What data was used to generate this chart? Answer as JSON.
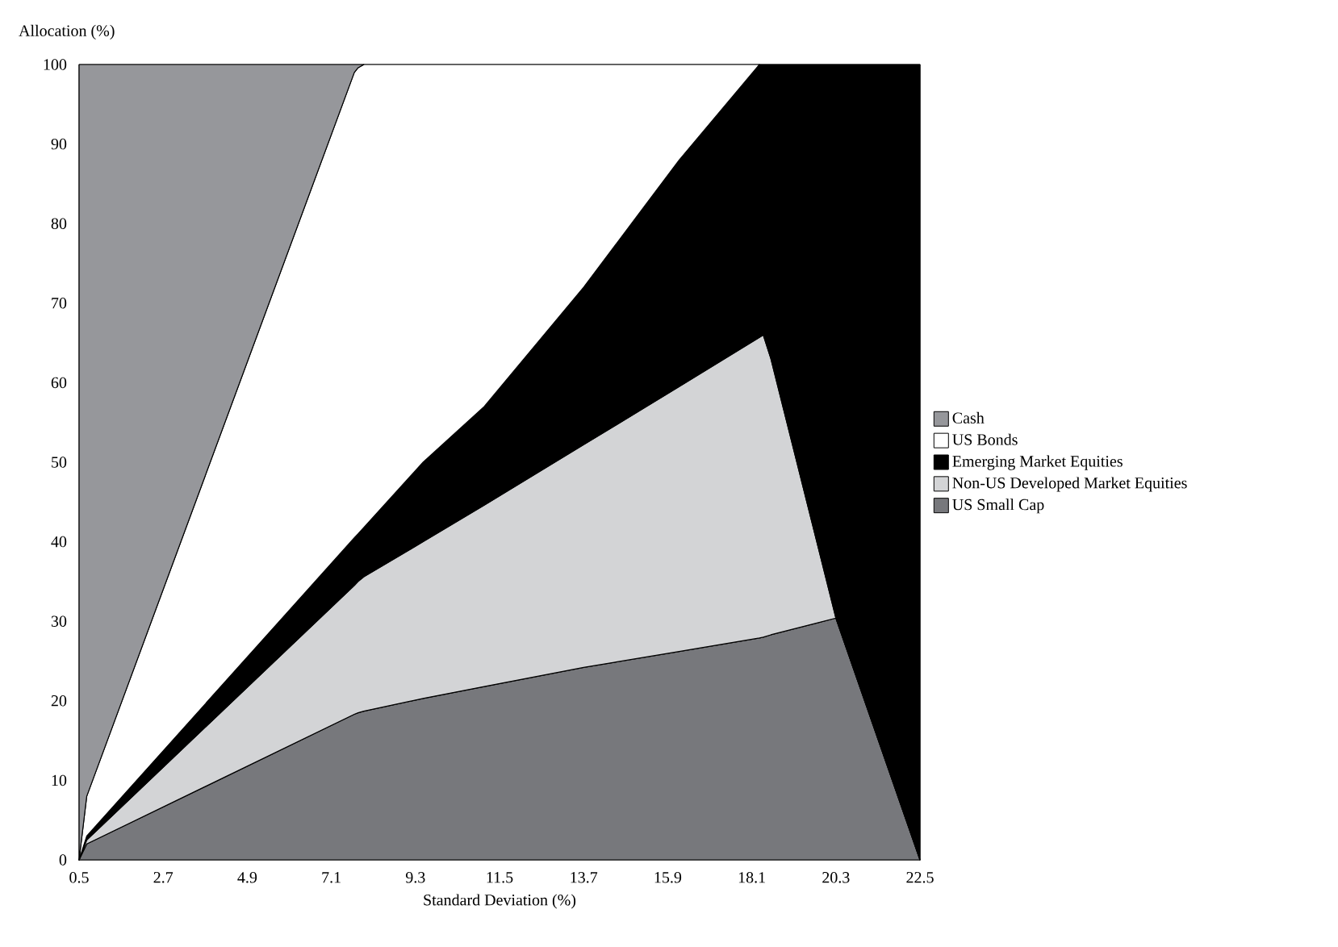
{
  "chart_data": {
    "type": "area",
    "stacked": true,
    "xlabel": "Standard Deviation (%)",
    "ylabel": "Allocation (%)",
    "x": [
      0.5,
      0.7,
      7.7,
      7.8,
      7.95,
      9.5,
      11.1,
      13.7,
      16.2,
      18.3,
      18.4,
      18.6,
      20.3,
      22.5
    ],
    "xlim": [
      0.5,
      22.5
    ],
    "xticks": [
      0.5,
      2.7,
      4.9,
      7.1,
      9.3,
      11.5,
      13.7,
      15.9,
      18.1,
      20.3,
      22.5
    ],
    "ylim": [
      0,
      100
    ],
    "yticks": [
      0,
      10,
      20,
      30,
      40,
      50,
      60,
      70,
      80,
      90,
      100
    ],
    "legend": "right",
    "series": [
      {
        "name": "US Small Cap",
        "color": "#77787c",
        "values": [
          0,
          2,
          18.3,
          18.5,
          18.7,
          20.3,
          21.8,
          24.2,
          26.2,
          27.9,
          28,
          28.3,
          30.4,
          0
        ]
      },
      {
        "name": "Non-US Developed Market Equities",
        "color": "#d3d4d6",
        "values": [
          0,
          0.5,
          16.2,
          16.5,
          16.9,
          19.7,
          22.8,
          28,
          33.3,
          37.8,
          38,
          34.7,
          0,
          0
        ]
      },
      {
        "name": "Emerging Market Equities",
        "color": "#000000",
        "values": [
          0,
          0.5,
          6,
          6,
          6.2,
          10,
          12.4,
          19.8,
          28.5,
          34.3,
          34,
          37,
          69.6,
          100
        ]
      },
      {
        "name": "US Bonds",
        "color": "#ffffff",
        "values": [
          0,
          5,
          58.5,
          58.6,
          58.2,
          50,
          43,
          28,
          12,
          0,
          null,
          null,
          null,
          null
        ]
      },
      {
        "name": "Cash",
        "color": "#96979b",
        "values": [
          100,
          92,
          1,
          0.4,
          0,
          null,
          null,
          null,
          null,
          null,
          null,
          null,
          null,
          null
        ]
      }
    ]
  }
}
